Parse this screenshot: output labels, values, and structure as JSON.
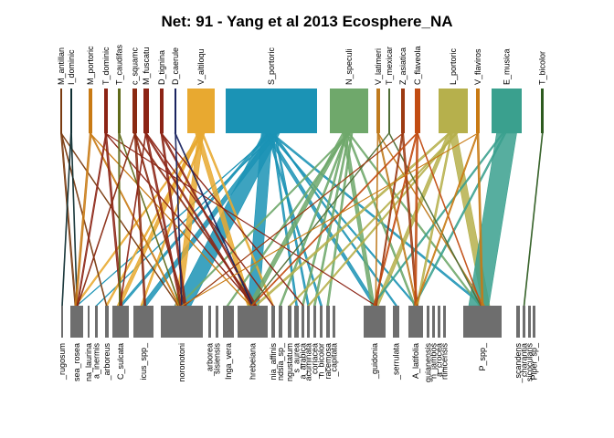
{
  "title": "Net: 91 - Yang et al 2013 Ecosphere_NA",
  "higher_level": [
    {
      "label": "M_antillan",
      "color": "#7a3b10"
    },
    {
      "label": "I_dominic",
      "color": "#0f2f33"
    },
    {
      "label": "M_portoric",
      "color": "#c87a14"
    },
    {
      "label": "T_dominic",
      "color": "#8c2415"
    },
    {
      "label": "T_caudifas",
      "color": "#5f6a1a"
    },
    {
      "label": "c_squamc",
      "color": "#8a2a12"
    },
    {
      "label": "M_fuscatu",
      "color": "#8c2415"
    },
    {
      "label": "D_tignina",
      "color": "#8c2415"
    },
    {
      "label": "D_caerule",
      "color": "#1a2460"
    },
    {
      "label": "V_altiloqu",
      "color": "#e8a930"
    },
    {
      "label": "S_portoric",
      "color": "#1b93b5"
    },
    {
      "label": "N_speculi",
      "color": "#6fa86b"
    },
    {
      "label": "V_latimeri",
      "color": "#c07b1f"
    },
    {
      "label": "T_mexicar",
      "color": "#4f6d36"
    },
    {
      "label": "Z_asiatica",
      "color": "#9c3a12"
    },
    {
      "label": "C_flaveola",
      "color": "#c24c12"
    },
    {
      "label": "L_portoric",
      "color": "#b6b04c"
    },
    {
      "label": "V_flaviros",
      "color": "#c87a14"
    },
    {
      "label": "E_musica",
      "color": "#3aa08e"
    },
    {
      "label": "T_bicolor",
      "color": "#2c5a1e"
    }
  ],
  "lower_level": [
    "_rugosum",
    "sea_rosea",
    "na_laurina",
    "a_inermis",
    "_arboreus",
    "C_sulcata",
    "icus_spp_",
    "noronotoni",
    "_arborea",
    "sisiensis",
    "Inga_vera",
    "hrebeiana",
    "nia_affinis",
    "ndsia_sp_",
    "ngustatum",
    "s_aurea",
    "a_arabica",
    "acuminata",
    "_coriacea",
    "n_bicolor",
    "racemosa",
    "_capitata",
    "_guidonia",
    "_serrulata",
    "A_latifolia",
    "guianensis",
    "n_jambos",
    "a_crocea",
    "rtinicensis",
    "P_spp_",
    "_scandens",
    "charantia",
    "sicocularis",
    "Piper_sp_"
  ]
}
